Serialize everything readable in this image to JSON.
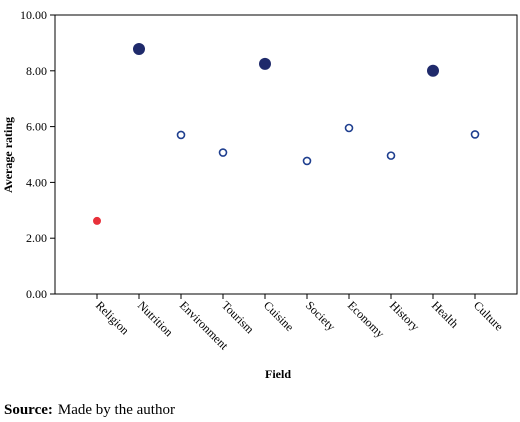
{
  "chart_data": {
    "type": "dot",
    "y_label": "Average rating",
    "x_label": "Field",
    "categories": [
      "Religion",
      "Nutrition",
      "Environment",
      "Tourism",
      "Cuisine",
      "Society",
      "Economy",
      "History",
      "Health",
      "Culture"
    ],
    "values": [
      2.62,
      8.78,
      5.7,
      5.07,
      8.25,
      4.77,
      5.95,
      4.96,
      8.0,
      5.72
    ],
    "point_styles": [
      "small-filled",
      "large-filled",
      "open",
      "open",
      "large-filled",
      "open",
      "open",
      "open",
      "large-filled",
      "open"
    ],
    "point_colors": [
      "#e8303a",
      "#1f2a6b",
      "#1f3f8f",
      "#1f3f8f",
      "#1f2a6b",
      "#1f3f8f",
      "#1f3f8f",
      "#1f3f8f",
      "#1f2a6b",
      "#1f3f8f"
    ],
    "ylim": [
      0,
      10
    ],
    "yticks": [
      {
        "value": 0,
        "label": "0.00"
      },
      {
        "value": 2,
        "label": "2.00"
      },
      {
        "value": 4,
        "label": "4.00"
      },
      {
        "value": 6,
        "label": "6.00"
      },
      {
        "value": 8,
        "label": "8.00"
      },
      {
        "value": 10,
        "label": "10.00"
      }
    ]
  },
  "source": {
    "label": "Source:",
    "text": "Made by the author"
  }
}
